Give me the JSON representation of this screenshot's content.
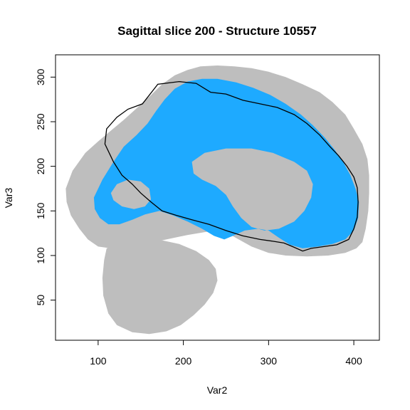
{
  "chart_data": {
    "type": "scatter",
    "title": "Sagittal slice 200 - Structure 10557",
    "xlabel": "Var2",
    "ylabel": "Var3",
    "xlim": [
      50,
      430
    ],
    "ylim": [
      5,
      325
    ],
    "x_ticks": [
      100,
      200,
      300,
      400
    ],
    "y_ticks": [
      50,
      100,
      150,
      200,
      250,
      300
    ],
    "grid": false,
    "layers": [
      {
        "name": "brain",
        "color": "#bebebe"
      },
      {
        "name": "white matter",
        "color": "#1eaaff"
      },
      {
        "name": "structure outline",
        "color": "#000000"
      }
    ],
    "brain_outline": [
      [
        62,
        175
      ],
      [
        70,
        195
      ],
      [
        85,
        215
      ],
      [
        100,
        228
      ],
      [
        115,
        240
      ],
      [
        130,
        252
      ],
      [
        145,
        265
      ],
      [
        160,
        278
      ],
      [
        175,
        292
      ],
      [
        190,
        302
      ],
      [
        205,
        308
      ],
      [
        220,
        312
      ],
      [
        240,
        313
      ],
      [
        260,
        312
      ],
      [
        280,
        310
      ],
      [
        300,
        306
      ],
      [
        320,
        300
      ],
      [
        340,
        292
      ],
      [
        360,
        283
      ],
      [
        375,
        272
      ],
      [
        390,
        258
      ],
      [
        400,
        242
      ],
      [
        410,
        225
      ],
      [
        416,
        208
      ],
      [
        418,
        190
      ],
      [
        418,
        170
      ],
      [
        417,
        150
      ],
      [
        414,
        130
      ],
      [
        410,
        115
      ],
      [
        403,
        108
      ],
      [
        390,
        103
      ],
      [
        370,
        100
      ],
      [
        345,
        99
      ],
      [
        320,
        100
      ],
      [
        300,
        103
      ],
      [
        280,
        110
      ],
      [
        265,
        118
      ],
      [
        250,
        126
      ],
      [
        230,
        127
      ],
      [
        205,
        123
      ],
      [
        180,
        118
      ],
      [
        155,
        113
      ],
      [
        135,
        110
      ],
      [
        115,
        108
      ],
      [
        100,
        110
      ],
      [
        88,
        118
      ],
      [
        78,
        130
      ],
      [
        68,
        145
      ],
      [
        63,
        160
      ]
    ],
    "cerebellum_outline": [
      [
        110,
        108
      ],
      [
        125,
        113
      ],
      [
        150,
        116
      ],
      [
        175,
        117
      ],
      [
        195,
        113
      ],
      [
        215,
        105
      ],
      [
        230,
        95
      ],
      [
        238,
        85
      ],
      [
        240,
        72
      ],
      [
        235,
        58
      ],
      [
        225,
        45
      ],
      [
        212,
        33
      ],
      [
        197,
        22
      ],
      [
        180,
        15
      ],
      [
        160,
        12
      ],
      [
        140,
        14
      ],
      [
        122,
        22
      ],
      [
        112,
        35
      ],
      [
        106,
        55
      ],
      [
        105,
        75
      ],
      [
        107,
        95
      ]
    ],
    "white_matter_outline": [
      [
        95,
        165
      ],
      [
        105,
        185
      ],
      [
        118,
        205
      ],
      [
        130,
        222
      ],
      [
        145,
        235
      ],
      [
        158,
        248
      ],
      [
        168,
        262
      ],
      [
        178,
        275
      ],
      [
        190,
        287
      ],
      [
        205,
        295
      ],
      [
        222,
        298
      ],
      [
        240,
        298
      ],
      [
        262,
        294
      ],
      [
        282,
        288
      ],
      [
        302,
        280
      ],
      [
        320,
        270
      ],
      [
        338,
        258
      ],
      [
        352,
        246
      ],
      [
        366,
        232
      ],
      [
        378,
        218
      ],
      [
        388,
        204
      ],
      [
        396,
        190
      ],
      [
        402,
        175
      ],
      [
        406,
        160
      ],
      [
        405,
        142
      ],
      [
        400,
        128
      ],
      [
        390,
        118
      ],
      [
        375,
        113
      ],
      [
        358,
        110
      ],
      [
        340,
        108
      ],
      [
        325,
        112
      ],
      [
        312,
        120
      ],
      [
        300,
        128
      ],
      [
        288,
        130
      ],
      [
        272,
        128
      ],
      [
        258,
        122
      ],
      [
        248,
        118
      ],
      [
        236,
        122
      ],
      [
        222,
        130
      ],
      [
        205,
        138
      ],
      [
        188,
        145
      ],
      [
        172,
        150
      ],
      [
        155,
        146
      ],
      [
        140,
        140
      ],
      [
        125,
        135
      ],
      [
        112,
        135
      ],
      [
        102,
        142
      ],
      [
        96,
        152
      ]
    ],
    "white_matter_holes": [
      [
        [
          210,
          205
        ],
        [
          225,
          215
        ],
        [
          250,
          220
        ],
        [
          280,
          220
        ],
        [
          305,
          215
        ],
        [
          330,
          205
        ],
        [
          345,
          195
        ],
        [
          352,
          180
        ],
        [
          350,
          165
        ],
        [
          342,
          150
        ],
        [
          330,
          138
        ],
        [
          312,
          130
        ],
        [
          295,
          128
        ],
        [
          280,
          132
        ],
        [
          268,
          142
        ],
        [
          258,
          155
        ],
        [
          250,
          168
        ],
        [
          238,
          178
        ],
        [
          222,
          185
        ],
        [
          212,
          192
        ]
      ],
      [
        [
          115,
          170
        ],
        [
          122,
          180
        ],
        [
          135,
          185
        ],
        [
          150,
          183
        ],
        [
          160,
          175
        ],
        [
          162,
          163
        ],
        [
          155,
          155
        ],
        [
          142,
          152
        ],
        [
          128,
          155
        ],
        [
          118,
          162
        ]
      ]
    ],
    "structure_outline": [
      [
        110,
        242
      ],
      [
        122,
        255
      ],
      [
        135,
        264
      ],
      [
        152,
        270
      ],
      [
        170,
        292
      ],
      [
        195,
        295
      ],
      [
        215,
        293
      ],
      [
        232,
        283
      ],
      [
        250,
        281
      ],
      [
        270,
        274
      ],
      [
        290,
        270
      ],
      [
        310,
        266
      ],
      [
        330,
        258
      ],
      [
        345,
        248
      ],
      [
        360,
        235
      ],
      [
        372,
        222
      ],
      [
        382,
        212
      ],
      [
        392,
        200
      ],
      [
        400,
        188
      ],
      [
        404,
        176
      ],
      [
        405,
        160
      ],
      [
        404,
        143
      ],
      [
        400,
        130
      ],
      [
        394,
        118
      ],
      [
        380,
        112
      ],
      [
        365,
        110
      ],
      [
        350,
        108
      ],
      [
        340,
        105
      ],
      [
        328,
        110
      ],
      [
        318,
        114
      ],
      [
        305,
        116
      ],
      [
        290,
        118
      ],
      [
        270,
        122
      ],
      [
        250,
        128
      ],
      [
        230,
        135
      ],
      [
        210,
        140
      ],
      [
        192,
        145
      ],
      [
        175,
        150
      ],
      [
        162,
        160
      ],
      [
        150,
        170
      ],
      [
        140,
        180
      ],
      [
        128,
        190
      ],
      [
        118,
        205
      ],
      [
        108,
        225
      ]
    ]
  }
}
